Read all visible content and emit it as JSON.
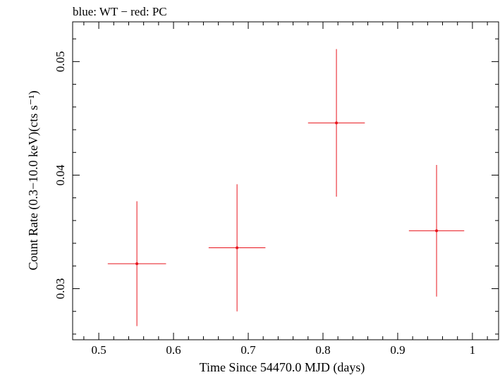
{
  "chart_data": {
    "type": "scatter",
    "title": "blue: WT − red: PC",
    "xlabel": "Time Since 54470.0 MJD (days)",
    "ylabel": "Count Rate (0.3−10.0 keV)(cts s⁻¹)",
    "xlim": [
      0.465,
      1.035
    ],
    "ylim": [
      0.0255,
      0.0535
    ],
    "x_ticks": [
      "0.5",
      "0.6",
      "0.7",
      "0.8",
      "0.9",
      "1"
    ],
    "y_ticks": [
      "0.03",
      "0.04",
      "0.05"
    ],
    "grid": false,
    "series": [
      {
        "color": "#e8141c",
        "points": [
          {
            "x": 0.551,
            "xerr": 0.039,
            "y": 0.0322,
            "yerr": 0.0055
          },
          {
            "x": 0.685,
            "xerr": 0.038,
            "y": 0.0336,
            "yerr": 0.0056
          },
          {
            "x": 0.818,
            "xerr": 0.038,
            "y": 0.0446,
            "yerr": 0.0065
          },
          {
            "x": 0.952,
            "xerr": 0.037,
            "y": 0.0351,
            "yerr": 0.0058
          }
        ]
      }
    ]
  }
}
